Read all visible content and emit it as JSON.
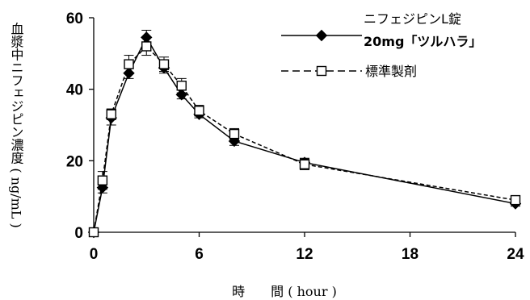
{
  "chart_data": {
    "type": "line",
    "title": "",
    "xlabel": "時　　間 ( hour )",
    "ylabel": "血漿中ニフェジピン濃度 ( ng/mL )",
    "xlim": [
      0,
      24
    ],
    "ylim": [
      0,
      60
    ],
    "xticks": [
      0,
      6,
      12,
      18,
      24
    ],
    "yticks": [
      0,
      20,
      40,
      60
    ],
    "grid": false,
    "legend_position": "top-right",
    "series": [
      {
        "name": "ニフェジピンL錠 20mg「ツルハラ」",
        "legend_line1": "ニフェジピンL錠",
        "legend_line2": "20mg「ツルハラ」",
        "marker": "diamond-filled",
        "line_style": "solid",
        "x": [
          0,
          0.5,
          1,
          2,
          3,
          4,
          5,
          6,
          8,
          12,
          24
        ],
        "y": [
          0,
          12.5,
          32,
          44.5,
          54.5,
          46,
          38.5,
          33,
          25.5,
          19.5,
          8
        ],
        "err": [
          0,
          1.5,
          2,
          1.5,
          2,
          1.5,
          1.2,
          1,
          1.2,
          1.2,
          0.7
        ]
      },
      {
        "name": "標準製剤",
        "marker": "square-open",
        "line_style": "dashed",
        "x": [
          0,
          0.5,
          1,
          2,
          3,
          4,
          5,
          6,
          8,
          12,
          24
        ],
        "y": [
          0,
          14.5,
          33,
          47,
          52,
          47,
          41,
          34,
          27.5,
          19,
          9
        ],
        "err": [
          0,
          2.5,
          1.5,
          2.5,
          2.5,
          2,
          2,
          1.5,
          1.5,
          1.5,
          0.7
        ]
      }
    ]
  }
}
